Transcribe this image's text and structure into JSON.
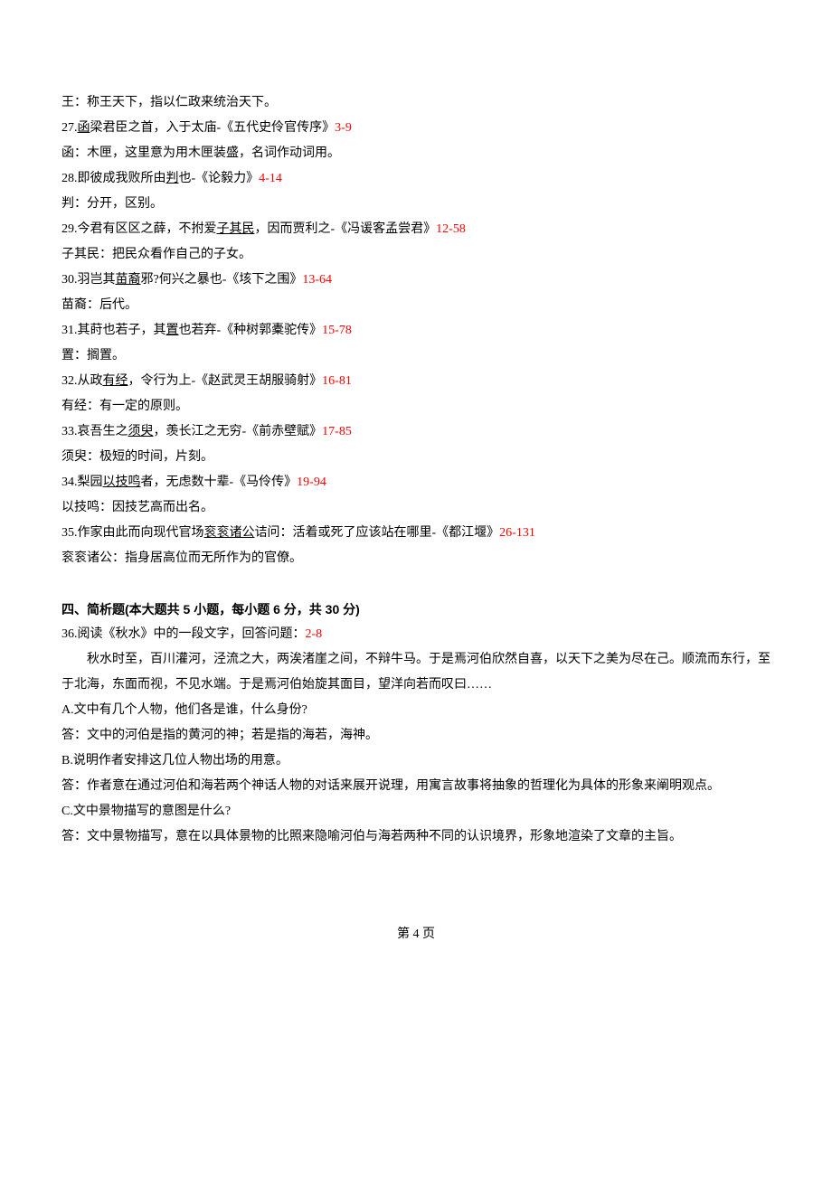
{
  "colors": {
    "text": "#000000",
    "ref": "#ff0000",
    "background": "#ffffff"
  },
  "typography": {
    "body_font": "SimSun",
    "heading_font": "SimHei",
    "font_size": 14,
    "line_height": 2.0
  },
  "lines": {
    "l01": "王：称王天下，指以仁政来统治天下。",
    "l02a": "27.",
    "l02b": "函",
    "l02c": "梁君臣之首，入于太庙-《五代史伶官传序》",
    "l02r": "3-9",
    "l03": "函：木匣，这里意为用木匣装盛，名词作动词用。",
    "l04a": "28.即彼成我败所由",
    "l04b": "判",
    "l04c": "也-《论毅力》",
    "l04r": "4-14",
    "l05": "判：分开，区别。",
    "l06a": "29.今君有区区之薛，不拊爱",
    "l06b": "子其民",
    "l06c": "，因而贾利之-《冯谖客孟尝君》",
    "l06r": "12-58",
    "l07": "子其民：把民众看作自己的子女。",
    "l08a": "30.羽岂其",
    "l08b": "苗裔",
    "l08c": "邪?何兴之暴也-《垓下之围》",
    "l08r": "13-64",
    "l09": "苗裔：后代。",
    "l10a": "31.其莳也若子，其",
    "l10b": "置",
    "l10c": "也若弃-《种树郭橐驼传》",
    "l10r": "15-78",
    "l11": "置：搁置。",
    "l12a": "32.从政",
    "l12b": "有经",
    "l12c": "，令行为上-《赵武灵王胡服骑射》",
    "l12r": "16-81",
    "l13": "有经：有一定的原则。",
    "l14a": "33.哀吾生之",
    "l14b": "须臾",
    "l14c": "，羡长江之无穷-《前赤壁赋》",
    "l14r": "17-85",
    "l15": "须臾：极短的时间，片刻。",
    "l16a": "34.梨园",
    "l16b": "以技鸣",
    "l16c": "者，无虑数十辈-《马伶传》",
    "l16r": "19-94",
    "l17": "以技鸣：因技艺高而出名。",
    "l18a": "35.作家由此而向现代官场",
    "l18b": "衮衮诸公",
    "l18c": "诘问：活着或死了应该站在哪里-《都江堰》",
    "l18r": "26-131",
    "l19": "衮衮诸公：指身居高位而无所作为的官僚。",
    "section4": "四、简析题(本大题共 5 小题，每小题 6 分，共 30 分)",
    "q36a": "36.阅读《秋水》中的一段文字，回答问题：",
    "q36r": "2-8",
    "q36p1": "秋水时至，百川灌河，泾流之大，两涘渚崖之间，不辩牛马。于是焉河伯欣然自喜，以天下之美为尽在己。顺流而东行，至于北海，东面而视，不见水端。于是焉河伯始旋其面目，望洋向若而叹曰……",
    "q36A": "A.文中有几个人物，他们各是谁，什么身份?",
    "q36Aa": "答：文中的河伯是指的黄河的神；若是指的海若，海神。",
    "q36B": "B.说明作者安排这几位人物出场的用意。",
    "q36Ba": "答：作者意在通过河伯和海若两个神话人物的对话来展开说理，用寓言故事将抽象的哲理化为具体的形象来阐明观点。",
    "q36C": "C.文中景物描写的意图是什么?",
    "q36Ca": "答：文中景物描写，意在以具体景物的比照来隐喻河伯与海若两种不同的认识境界，形象地渲染了文章的主旨。"
  },
  "page_number": "第 4 页"
}
